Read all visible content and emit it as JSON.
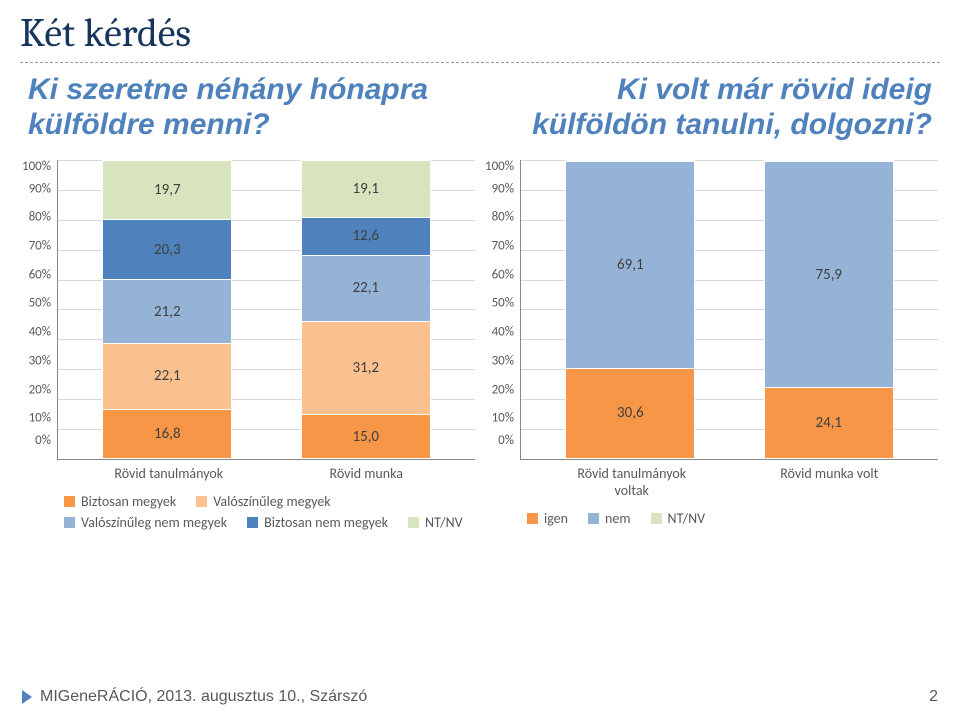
{
  "title": "Két kérdés",
  "subtitle_left": "Ki szeretne néhány hónapra külföldre menni?",
  "subtitle_right": "Ki volt már rövid ideig külföldön tanulni, dolgozni?",
  "footer_text": "MIGeneRÁCIÓ, 2013. augusztus 10., Szárszó",
  "footer_page": "2",
  "chart_left": {
    "type": "stacked-bar-100",
    "yticks": [
      "100%",
      "90%",
      "80%",
      "70%",
      "60%",
      "50%",
      "40%",
      "30%",
      "20%",
      "10%",
      "0%"
    ],
    "ylim": [
      0,
      100
    ],
    "grid_color": "#d9d9d9",
    "categories": [
      "Rövid tanulmányok",
      "Rövid munka"
    ],
    "series": [
      {
        "name": "Biztosan megyek",
        "color": "#f79646"
      },
      {
        "name": "Valószínűleg megyek",
        "color": "#fac090"
      },
      {
        "name": "Valószínűleg nem megyek",
        "color": "#95b3d7"
      },
      {
        "name": "Biztosan nem megyek",
        "color": "#4f81bd"
      },
      {
        "name": "NT/NV",
        "color": "#d7e4bd"
      }
    ],
    "data": [
      [
        16.8,
        22.1,
        21.2,
        20.3,
        19.7
      ],
      [
        15.0,
        31.2,
        22.1,
        12.6,
        19.1
      ]
    ],
    "data_label_fontsize": 15,
    "data_fmt": ",1"
  },
  "chart_right": {
    "type": "stacked-bar-100",
    "yticks": [
      "100%",
      "90%",
      "80%",
      "70%",
      "60%",
      "50%",
      "40%",
      "30%",
      "20%",
      "10%",
      "0%"
    ],
    "ylim": [
      0,
      100
    ],
    "grid_color": "#d9d9d9",
    "categories": [
      "Rövid tanulmányok voltak",
      "Rövid munka volt"
    ],
    "series": [
      {
        "name": "igen",
        "color": "#f79646"
      },
      {
        "name": "nem",
        "color": "#95b3d7"
      },
      {
        "name": "NT/NV",
        "color": "#d7e4bd"
      }
    ],
    "data": [
      [
        30.6,
        69.1,
        0.3
      ],
      [
        24.1,
        75.9,
        0.0
      ]
    ],
    "labels_override": [
      [
        "30,6",
        "69,1",
        ",3"
      ],
      [
        "24,1",
        "75,9",
        ""
      ]
    ],
    "data_label_fontsize": 15
  },
  "colors": {
    "title": "#17365d",
    "subtitle": "#4f81bd",
    "axis_text": "#595959",
    "divider": "#8b9bb3"
  }
}
